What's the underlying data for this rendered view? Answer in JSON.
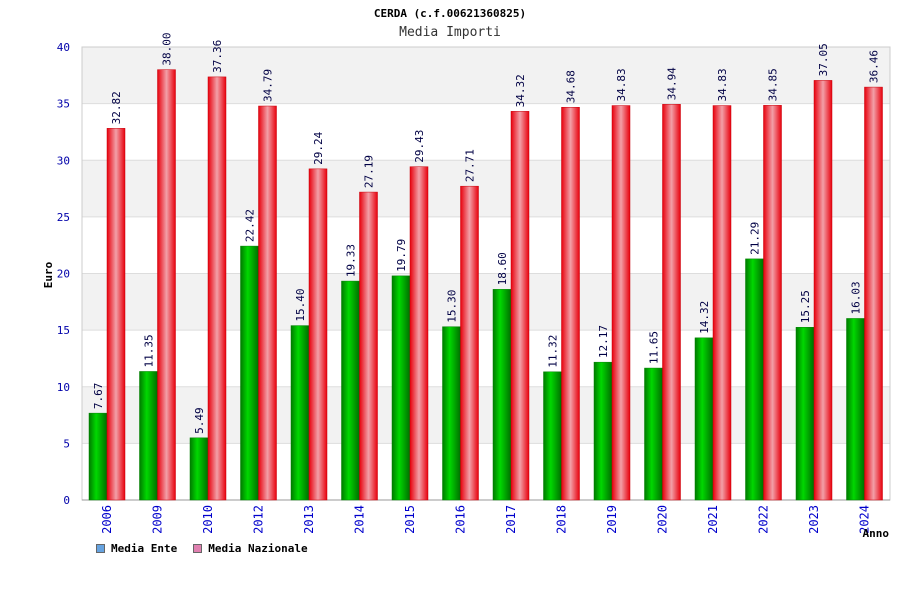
{
  "chart_data": {
    "type": "bar",
    "title": "CERDA (c.f.00621360825)",
    "subtitle": "Media Importi",
    "xlabel": "Anno",
    "ylabel": "Euro",
    "ylim": [
      0,
      40
    ],
    "yticks": [
      0,
      5,
      10,
      15,
      20,
      25,
      30,
      35,
      40
    ],
    "grid": true,
    "legend_position": "bottom-left",
    "categories": [
      "2006",
      "2009",
      "2010",
      "2012",
      "2013",
      "2014",
      "2015",
      "2016",
      "2017",
      "2018",
      "2019",
      "2020",
      "2021",
      "2022",
      "2023",
      "2024"
    ],
    "series": [
      {
        "name": "Media Ente",
        "color": "#00b000",
        "legend_color": "#66a3e0",
        "values": [
          7.67,
          11.35,
          5.49,
          22.42,
          15.4,
          19.33,
          19.79,
          15.3,
          18.6,
          11.32,
          12.17,
          11.65,
          14.32,
          21.29,
          15.25,
          16.03
        ],
        "labels": [
          "7.67",
          "11.35",
          "5.49",
          "22.42",
          "15.40",
          "19.33",
          "19.79",
          "15.30",
          "18.60",
          "11.32",
          "12.17",
          "11.65",
          "14.32",
          "21.29",
          "15.25",
          "16.03"
        ]
      },
      {
        "name": "Media Nazionale",
        "color": "#e8101a",
        "legend_color": "#e080b0",
        "values": [
          32.82,
          38.0,
          37.36,
          34.79,
          29.24,
          27.19,
          29.43,
          27.71,
          34.32,
          34.68,
          34.83,
          34.94,
          34.83,
          34.85,
          37.05,
          36.46
        ],
        "labels": [
          "32.82",
          "38.00",
          "37.36",
          "34.79",
          "29.24",
          "27.19",
          "29.43",
          "27.71",
          "34.32",
          "34.68",
          "34.83",
          "34.94",
          "34.83",
          "34.85",
          "37.05",
          "36.46"
        ]
      }
    ]
  }
}
